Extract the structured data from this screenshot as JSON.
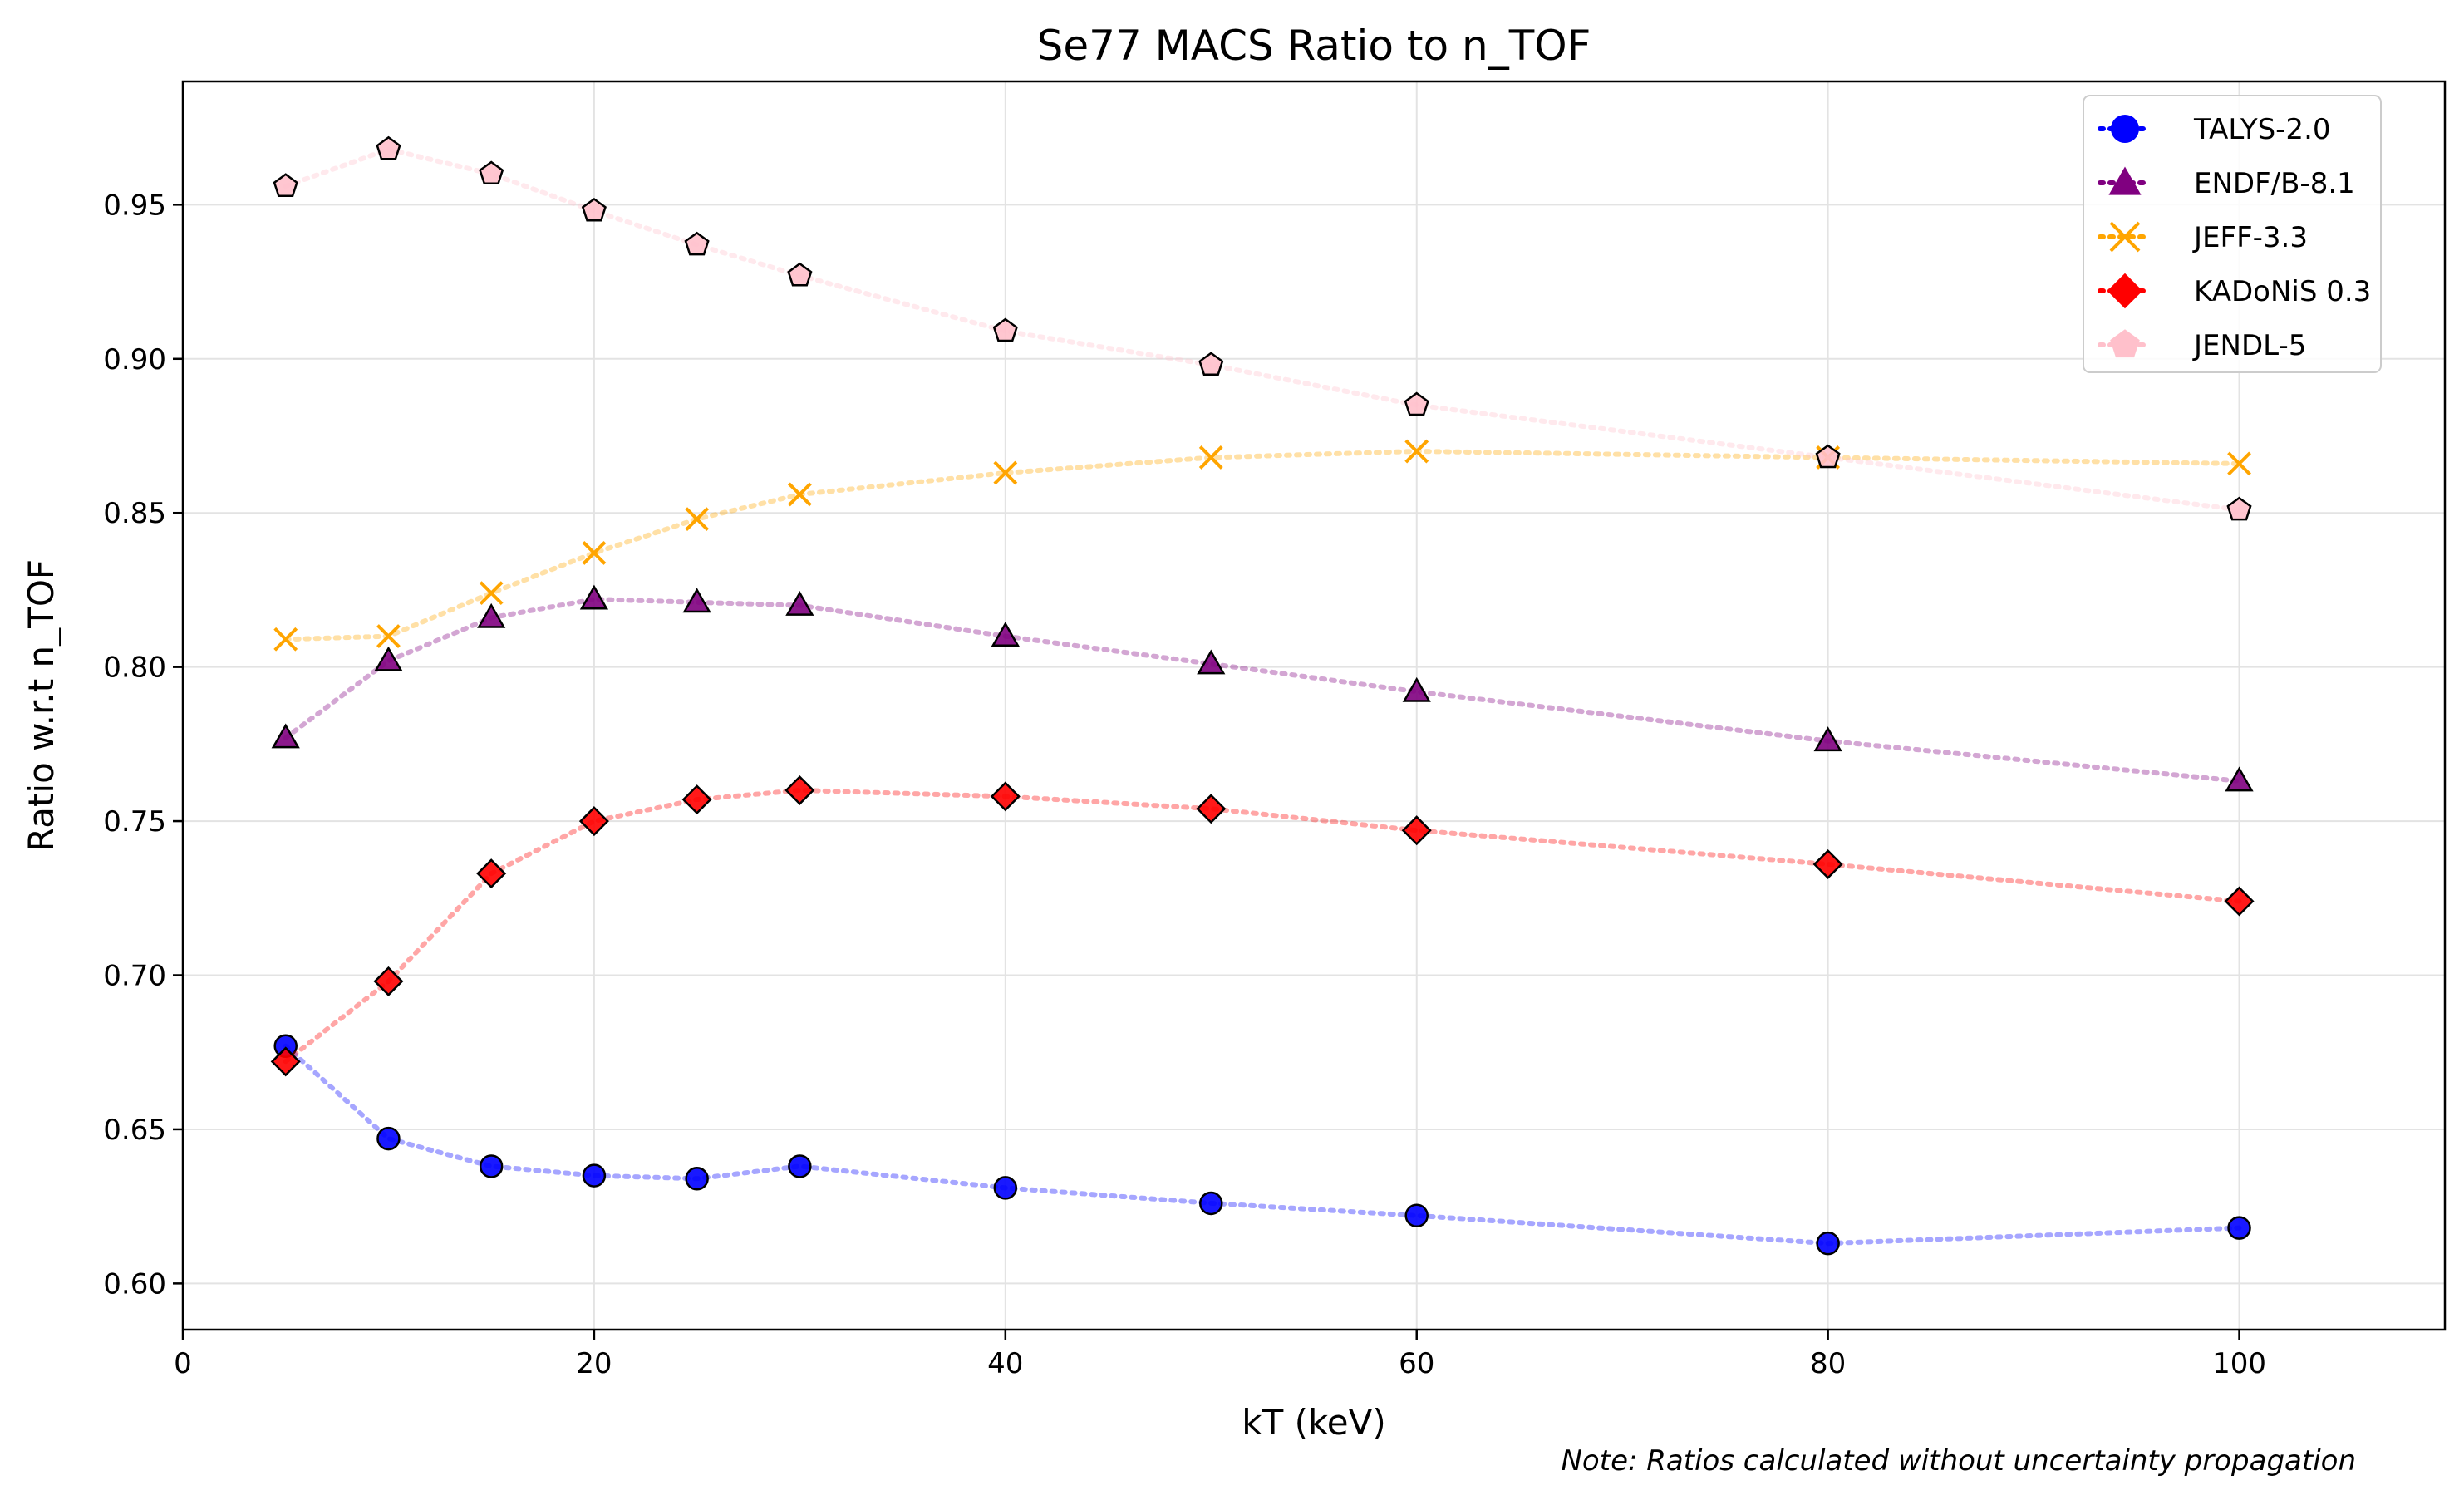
{
  "chart_data": {
    "type": "line",
    "title": "Se77 MACS Ratio to n_TOF",
    "xlabel": "kT (keV)",
    "ylabel": "Ratio w.r.t n_TOF",
    "xlim": [
      0,
      110
    ],
    "ylim": [
      0.585,
      0.99
    ],
    "x_ticks": [
      0,
      20,
      40,
      60,
      80,
      100
    ],
    "y_ticks": [
      0.6,
      0.65,
      0.7,
      0.75,
      0.8,
      0.85,
      0.9,
      0.95
    ],
    "grid": true,
    "legend_position": "top-right",
    "x": [
      5,
      10,
      15,
      20,
      25,
      30,
      40,
      50,
      60,
      80,
      100
    ],
    "series": [
      {
        "name": "TALYS-2.0",
        "color": "#0000ff",
        "marker": "circle",
        "values": [
          0.677,
          0.647,
          0.638,
          0.635,
          0.634,
          0.638,
          0.631,
          0.626,
          0.622,
          0.613,
          0.618
        ]
      },
      {
        "name": "ENDF/B-8.1",
        "color": "#800080",
        "marker": "triangle",
        "values": [
          0.777,
          0.802,
          0.816,
          0.822,
          0.821,
          0.82,
          0.81,
          0.801,
          0.792,
          0.776,
          0.763
        ]
      },
      {
        "name": "JEFF-3.3",
        "color": "#ffa500",
        "marker": "x",
        "values": [
          0.809,
          0.81,
          0.824,
          0.837,
          0.848,
          0.856,
          0.863,
          0.868,
          0.87,
          0.868,
          0.866
        ]
      },
      {
        "name": "KADoNiS 0.3",
        "color": "#ff0000",
        "marker": "diamond",
        "values": [
          0.672,
          0.698,
          0.733,
          0.75,
          0.757,
          0.76,
          0.758,
          0.754,
          0.747,
          0.736,
          0.724
        ]
      },
      {
        "name": "JENDL-5",
        "color": "#ffc0cb",
        "marker": "pentagon",
        "values": [
          0.956,
          0.968,
          0.96,
          0.948,
          0.937,
          0.927,
          0.909,
          0.898,
          0.885,
          0.868,
          0.851
        ]
      }
    ],
    "note": "Note: Ratios calculated without uncertainty propagation"
  }
}
